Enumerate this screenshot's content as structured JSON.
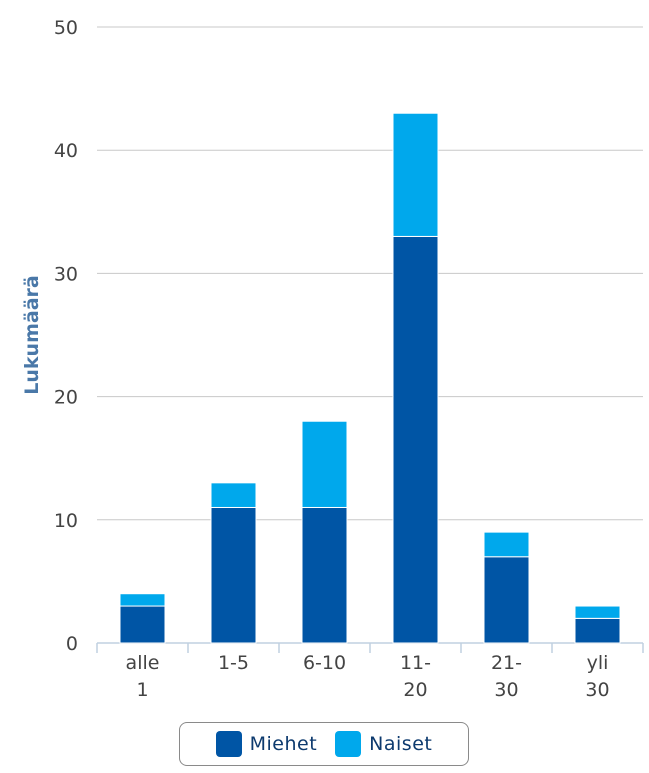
{
  "chart_data": {
    "type": "bar",
    "stacked": true,
    "categories": [
      [
        "alle",
        "1"
      ],
      [
        "1-5"
      ],
      [
        "6-10"
      ],
      [
        "11-",
        "20"
      ],
      [
        "21-",
        "30"
      ],
      [
        "yli",
        "30"
      ]
    ],
    "series": [
      {
        "name": "Miehet",
        "values": [
          3,
          11,
          11,
          33,
          7,
          2
        ],
        "color": "#0055a5"
      },
      {
        "name": "Naiset",
        "values": [
          1,
          2,
          7,
          10,
          2,
          1
        ],
        "color": "#00a8ec"
      }
    ],
    "ylabel": "Lukumäärä",
    "ylim": [
      0,
      50
    ],
    "yticks": [
      0,
      10,
      20,
      30,
      40,
      50
    ],
    "grid": true,
    "legend": "bottom-center"
  },
  "colors": {
    "ylabel": "#4a78a8",
    "grid": "#c8c8c8",
    "tick_text": "#444444"
  }
}
